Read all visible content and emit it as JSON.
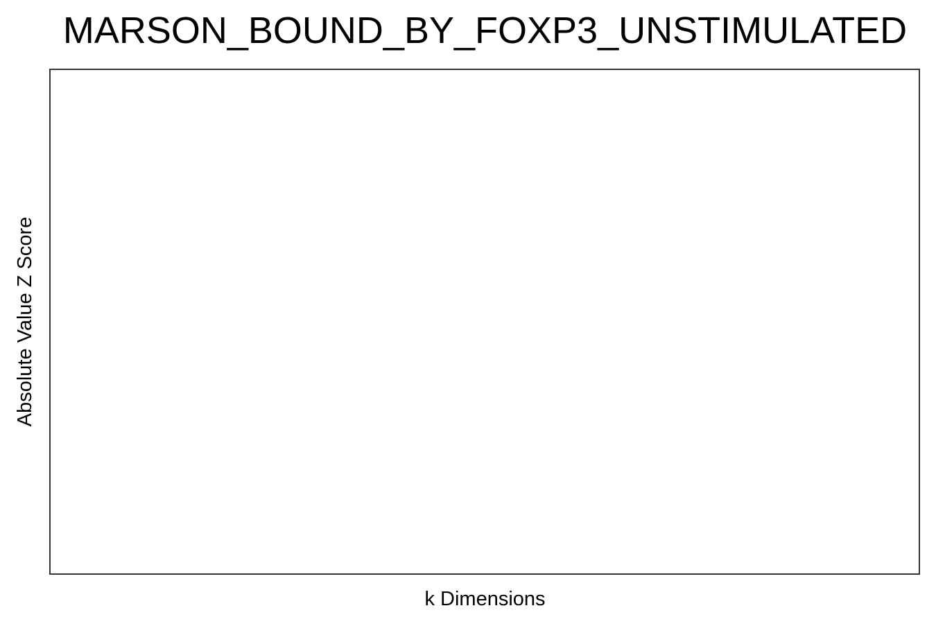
{
  "chart_data": {
    "type": "line",
    "title": "MARSON_BOUND_BY_FOXP3_UNSTIMULATED",
    "xlabel": "k Dimensions",
    "ylabel": "Absolute Value Z Score",
    "series": [],
    "grid": false,
    "legend": "none"
  }
}
